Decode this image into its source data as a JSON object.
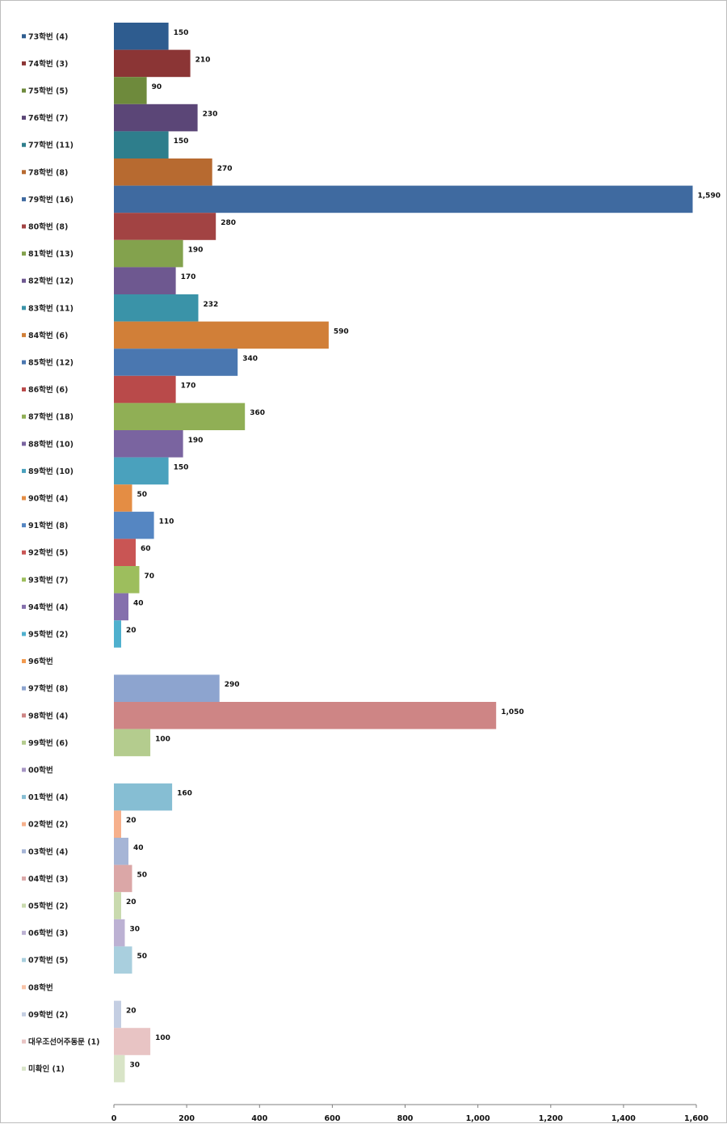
{
  "chart_data": {
    "type": "bar",
    "orientation": "horizontal",
    "title": "",
    "xlabel": "",
    "ylabel": "",
    "xlim": [
      0,
      1600
    ],
    "x_ticks": [
      0,
      200,
      400,
      600,
      800,
      1000,
      1200,
      1400,
      1600
    ],
    "x_tick_labels": [
      "0",
      "200",
      "400",
      "600",
      "800",
      "1,000",
      "1,200",
      "1,400",
      "1,600"
    ],
    "grid": false,
    "legend_position": "left",
    "categories": [
      "73학번 (4)",
      "74학번 (3)",
      "75학번 (5)",
      "76학번 (7)",
      "77학번 (11)",
      "78학번 (8)",
      "79학번 (16)",
      "80학번 (8)",
      "81학번 (13)",
      "82학번 (12)",
      "83학번 (11)",
      "84학번 (6)",
      "85학번 (12)",
      "86학번 (6)",
      "87학번 (18)",
      "88학번 (10)",
      "89학번 (10)",
      "90학번 (4)",
      "91학번 (8)",
      "92학번 (5)",
      "93학번 (7)",
      "94학번 (4)",
      "95학번 (2)",
      "96학번",
      "97학번 (8)",
      "98학번 (4)",
      "99학번 (6)",
      "00학번",
      "01학번 (4)",
      "02학번 (2)",
      "03학번 (4)",
      "04학번 (3)",
      "05학번 (2)",
      "06학번 (3)",
      "07학번 (5)",
      "08학번",
      "09학번 (2)",
      "대우조선어주동문 (1)",
      "미확인 (1)"
    ],
    "values": [
      150,
      210,
      90,
      230,
      150,
      270,
      1590,
      280,
      190,
      170,
      232,
      590,
      340,
      170,
      360,
      190,
      150,
      50,
      110,
      60,
      70,
      40,
      20,
      null,
      290,
      1050,
      100,
      null,
      160,
      20,
      40,
      50,
      20,
      30,
      50,
      null,
      20,
      100,
      30
    ],
    "value_labels": [
      "150",
      "210",
      "90",
      "230",
      "150",
      "270",
      "1,590",
      "280",
      "190",
      "170",
      "232",
      "590",
      "340",
      "170",
      "360",
      "190",
      "150",
      "50",
      "110",
      "60",
      "70",
      "40",
      "20",
      "",
      "290",
      "1,050",
      "100",
      "",
      "160",
      "20",
      "40",
      "50",
      "20",
      "30",
      "50",
      "",
      "20",
      "100",
      "30"
    ],
    "colors": [
      "#2E5C8F",
      "#8B3535",
      "#6E8A3C",
      "#5B4677",
      "#2E7E8C",
      "#B76A30",
      "#3F6AA0",
      "#A24343",
      "#83A24D",
      "#6E5890",
      "#3A93A8",
      "#D17F38",
      "#4A77B0",
      "#B94A4A",
      "#90AF55",
      "#7A64A0",
      "#4AA1BD",
      "#E48D44",
      "#5586C2",
      "#C95554",
      "#9DBE5D",
      "#8570AD",
      "#4FB0CE",
      "#F29A4D",
      "#8DA4CF",
      "#CE8585",
      "#B4CC8E",
      "#A796C4",
      "#86BED3",
      "#F6B08C",
      "#A6B5D6",
      "#DBA7A7",
      "#C9DAAE",
      "#BCB1D3",
      "#A9CFDE",
      "#F8C2A6",
      "#C4CEE2",
      "#E8C4C4",
      "#D8E4C7"
    ]
  }
}
